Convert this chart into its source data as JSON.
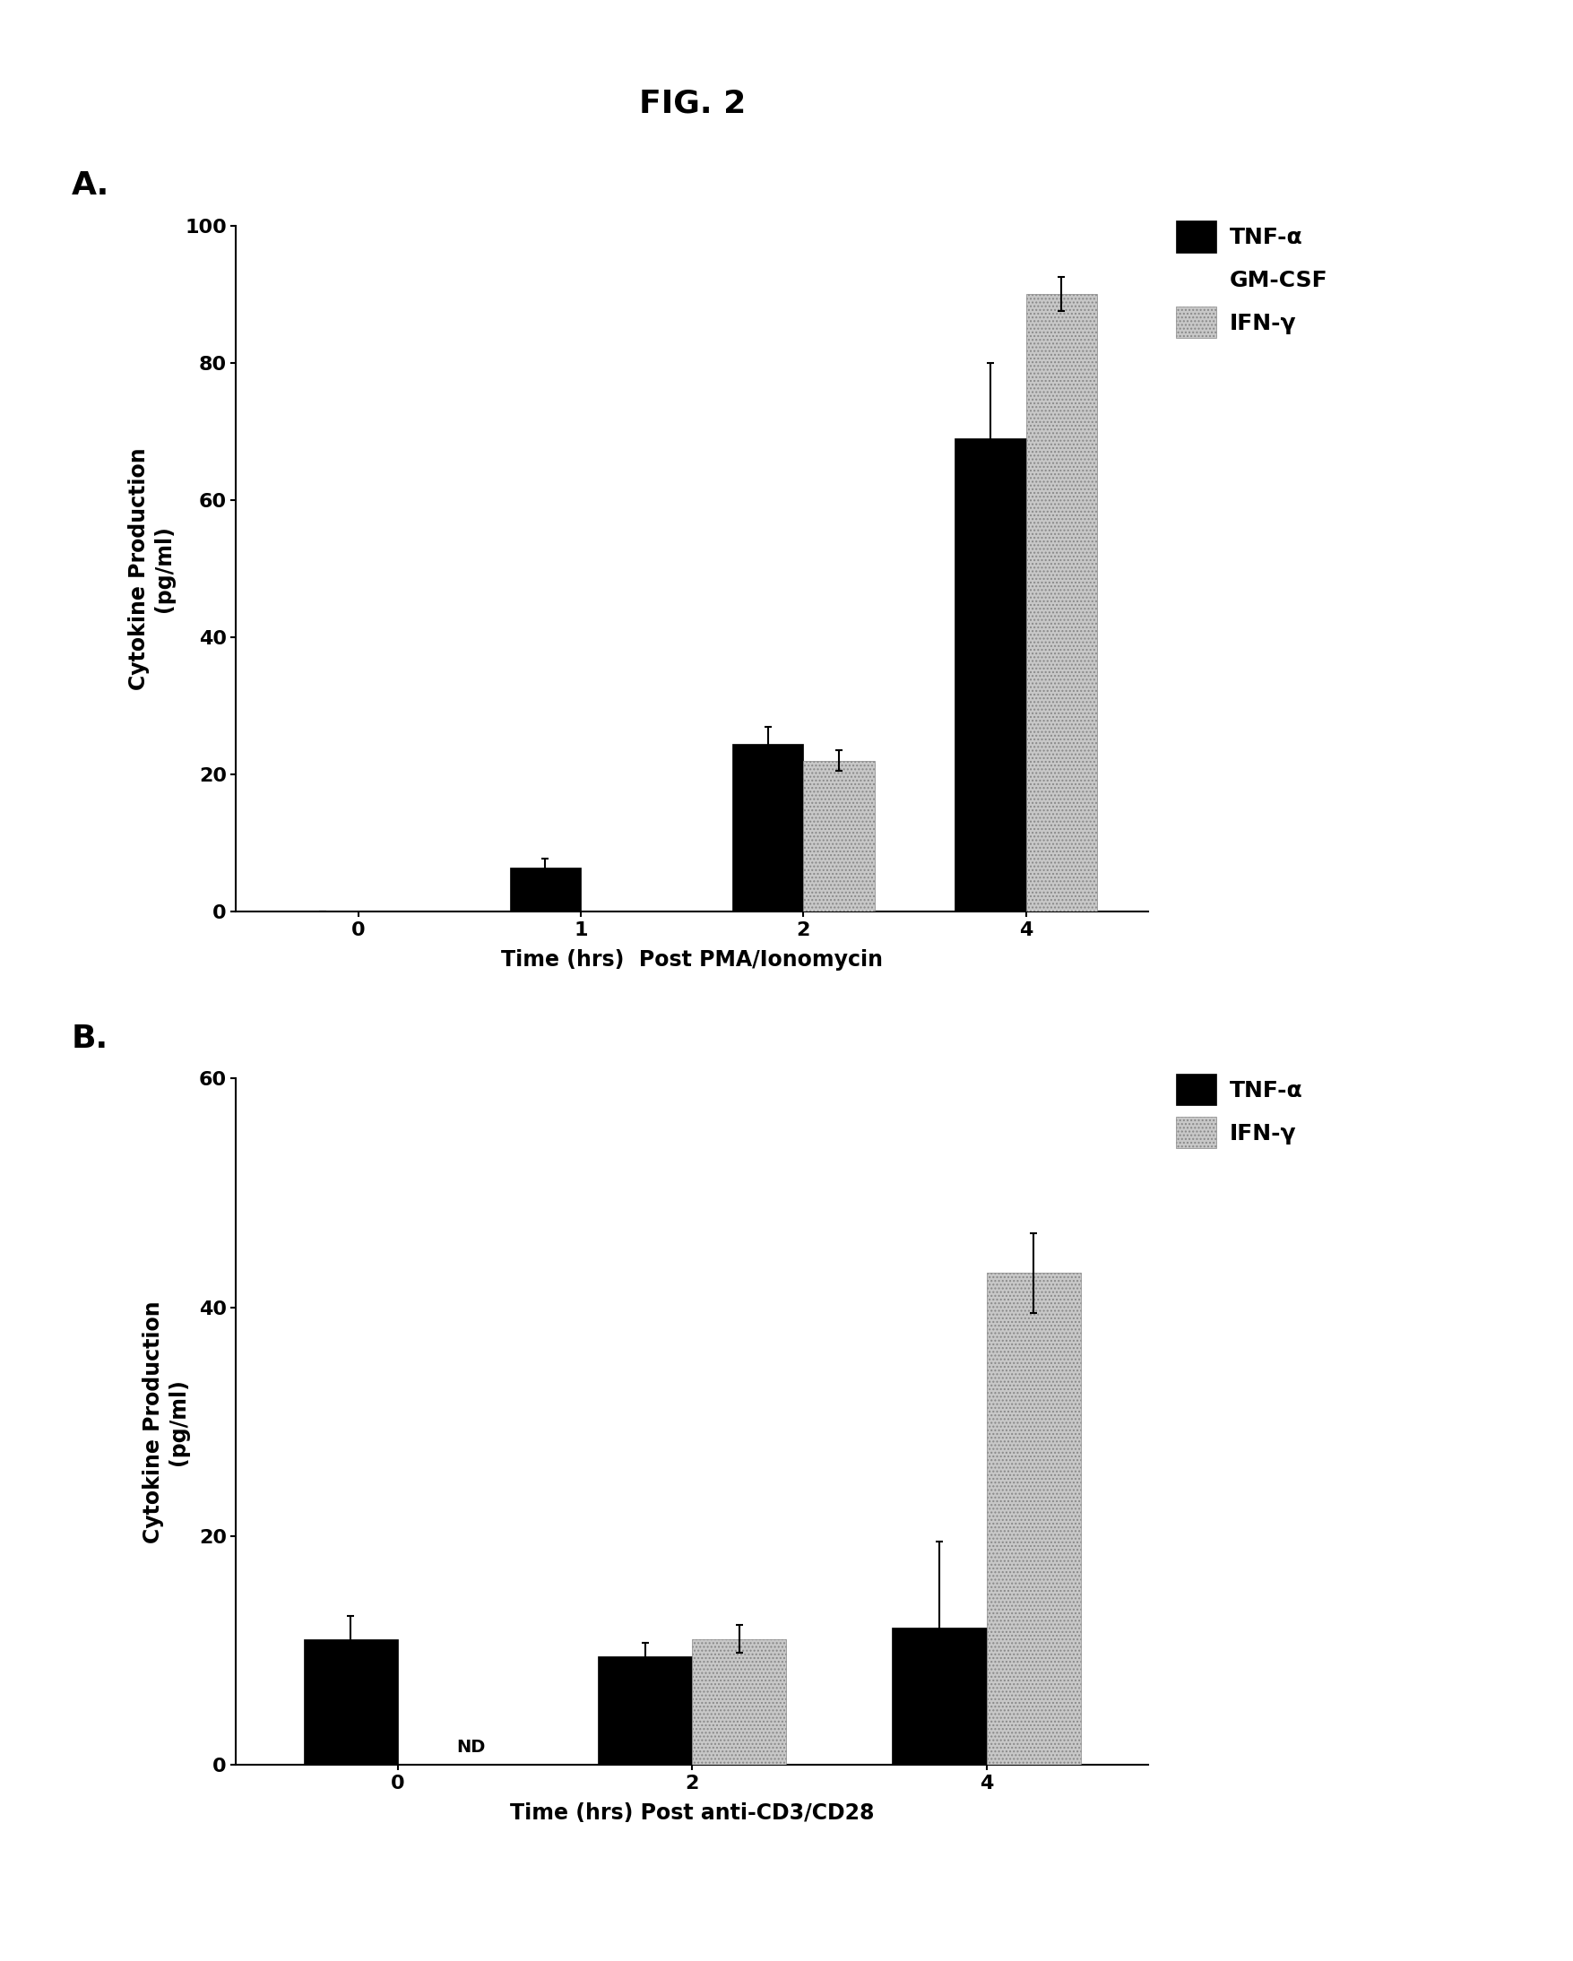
{
  "title": "FIG. 2",
  "panel_A": {
    "label": "A.",
    "ylabel": "Cytokine Production\n(pg/ml)",
    "xlabel": "Time (hrs)  Post PMA/Ionomycin",
    "ylim": [
      0,
      100
    ],
    "yticks": [
      0,
      20,
      40,
      60,
      80,
      100
    ],
    "xtick_labels": [
      "0",
      "1",
      "2",
      "4"
    ],
    "series": {
      "TNF-a": {
        "color": "#000000",
        "hatch": null,
        "times": [
          0,
          1,
          2,
          4
        ],
        "values": [
          0,
          6.5,
          24.5,
          69
        ],
        "errors": [
          0,
          1.2,
          2.5,
          11
        ]
      },
      "IFN-y": {
        "color": "#c8c8c8",
        "hatch": "....",
        "times": [
          2,
          4
        ],
        "values": [
          22,
          90
        ],
        "errors": [
          1.5,
          2.5
        ]
      }
    },
    "legend_labels": [
      "TNF-α",
      "GM-CSF",
      "IFN-γ"
    ],
    "legend_colors": [
      "#000000",
      null,
      "#c8c8c8"
    ],
    "legend_hatches": [
      null,
      null,
      "...."
    ]
  },
  "panel_B": {
    "label": "B.",
    "ylabel": "Cytokine Production\n(pg/ml)",
    "xlabel": "Time (hrs) Post anti-CD3/CD28",
    "ylim": [
      0,
      60
    ],
    "yticks": [
      0,
      20,
      40,
      60
    ],
    "xtick_labels": [
      "0",
      "2",
      "4"
    ],
    "nd_label": "ND",
    "series": {
      "TNF-a": {
        "color": "#000000",
        "hatch": null,
        "times": [
          0,
          2,
          4
        ],
        "values": [
          11,
          9.5,
          12
        ],
        "errors": [
          2.0,
          1.2,
          7.5
        ]
      },
      "IFN-y": {
        "color": "#c8c8c8",
        "hatch": "....",
        "times": [
          2,
          4
        ],
        "values": [
          11,
          43
        ],
        "errors": [
          1.2,
          3.5
        ]
      }
    },
    "legend_labels": [
      "TNF-α",
      "IFN-γ"
    ],
    "legend_colors": [
      "#000000",
      "#c8c8c8"
    ],
    "legend_hatches": [
      null,
      "...."
    ]
  },
  "background_color": "#ffffff",
  "bar_width": 0.32,
  "title_fontsize": 26,
  "panel_label_fontsize": 26,
  "tick_fontsize": 16,
  "legend_fontsize": 18,
  "axis_label_fontsize": 17,
  "nd_fontsize": 14
}
